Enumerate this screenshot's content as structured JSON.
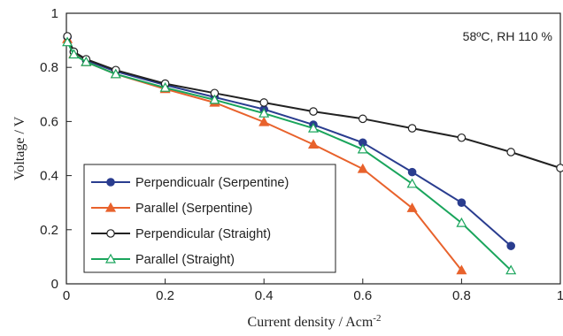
{
  "chart_data": {
    "type": "line",
    "annotation": "58ºC, RH 110 %",
    "xlabel": "Current density / Acm",
    "xlabel_sup": "-2",
    "ylabel": "Voltage / V",
    "xlim": [
      0,
      1
    ],
    "ylim": [
      0,
      1
    ],
    "xticks": [
      0,
      0.2,
      0.4,
      0.6,
      0.8,
      1
    ],
    "xtick_labels": [
      "0",
      "0.2",
      "0.4",
      "0.6",
      "0.8",
      "1"
    ],
    "yticks": [
      0,
      0.2,
      0.4,
      0.6,
      0.8,
      1
    ],
    "ytick_labels": [
      "0",
      "0.2",
      "0.4",
      "0.6",
      "0.8",
      "1"
    ],
    "grid": false,
    "legend_position": "bottom-left",
    "series": [
      {
        "name": "Perpendicualr (Serpentine)",
        "color": "#2a3d8f",
        "marker": "circle-filled",
        "x": [
          0.002,
          0.015,
          0.04,
          0.1,
          0.2,
          0.3,
          0.4,
          0.5,
          0.6,
          0.7,
          0.8,
          0.9
        ],
        "y": [
          0.912,
          0.857,
          0.826,
          0.785,
          0.735,
          0.69,
          0.645,
          0.588,
          0.522,
          0.413,
          0.3,
          0.14
        ]
      },
      {
        "name": "Parallel (Serpentine)",
        "color": "#e8622c",
        "marker": "triangle-filled",
        "x": [
          0.002,
          0.015,
          0.04,
          0.1,
          0.2,
          0.3,
          0.4,
          0.5,
          0.6,
          0.7,
          0.8
        ],
        "y": [
          0.905,
          0.85,
          0.82,
          0.775,
          0.72,
          0.67,
          0.598,
          0.515,
          0.425,
          0.28,
          0.05
        ]
      },
      {
        "name": "Perpendicular (Straight)",
        "color": "#222222",
        "marker": "circle-open",
        "x": [
          0.002,
          0.015,
          0.04,
          0.1,
          0.2,
          0.3,
          0.4,
          0.5,
          0.6,
          0.7,
          0.8,
          0.9,
          1.0
        ],
        "y": [
          0.915,
          0.858,
          0.83,
          0.79,
          0.74,
          0.705,
          0.67,
          0.637,
          0.61,
          0.575,
          0.54,
          0.487,
          0.428
        ]
      },
      {
        "name": "Parallel (Straight)",
        "color": "#1aa55c",
        "marker": "triangle-open",
        "x": [
          0.002,
          0.015,
          0.04,
          0.1,
          0.2,
          0.3,
          0.4,
          0.5,
          0.6,
          0.7,
          0.8,
          0.9
        ],
        "y": [
          0.893,
          0.848,
          0.82,
          0.775,
          0.725,
          0.68,
          0.63,
          0.575,
          0.497,
          0.37,
          0.225,
          0.05
        ]
      }
    ]
  }
}
